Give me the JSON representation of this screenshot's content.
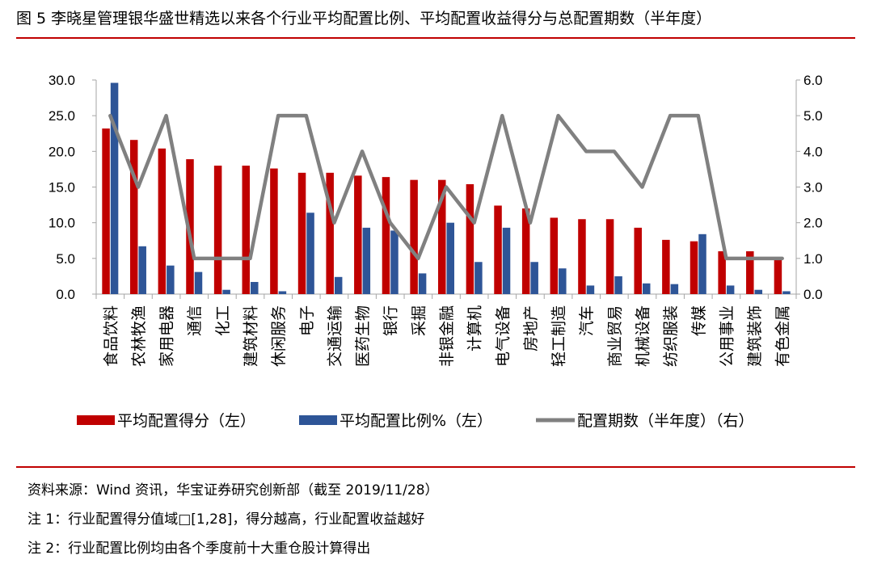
{
  "title": "图 5   李晓星管理银华盛世精选以来各个行业平均配置比例、平均配置收益得分与总配置期数（半年度）",
  "notes": {
    "source": "资料来源：Wind 资讯，华宝证券研究创新部（截至 2019/11/28）",
    "note1": "注 1：行业配置得分值域□[1,28]，得分越高，行业配置收益越好",
    "note2": "注 2：行业配置比例均由各个季度前十大重仓股计算得出"
  },
  "colors": {
    "score": "#c00000",
    "ratio": "#2e5597",
    "periods": "#808080",
    "rule": "#c00000",
    "axis": "#a6a6a6"
  },
  "chart_data": {
    "type": "bar",
    "categories": [
      "食品饮料",
      "农林牧渔",
      "家用电器",
      "通信",
      "化工",
      "建筑材料",
      "休闲服务",
      "电子",
      "交通运输",
      "医药生物",
      "银行",
      "采掘",
      "非银金融",
      "计算机",
      "电气设备",
      "房地产",
      "轻工制造",
      "汽车",
      "商业贸易",
      "机械设备",
      "纺织服装",
      "传媒",
      "公用事业",
      "建筑装饰",
      "有色金属"
    ],
    "series": [
      {
        "name": "平均配置得分（左）",
        "type": "bar",
        "axis": "left",
        "values": [
          23.2,
          21.6,
          20.4,
          18.9,
          18.0,
          18.0,
          17.6,
          17.0,
          17.0,
          16.6,
          16.4,
          16.0,
          16.0,
          15.4,
          12.4,
          12.0,
          10.7,
          10.5,
          10.5,
          9.3,
          7.6,
          7.4,
          6.0,
          6.0,
          5.0
        ]
      },
      {
        "name": "平均配置比例%（左）",
        "type": "bar",
        "axis": "left",
        "values": [
          29.6,
          6.7,
          4.0,
          3.1,
          0.6,
          1.7,
          0.4,
          11.4,
          2.4,
          9.3,
          8.9,
          2.9,
          10.0,
          4.5,
          9.3,
          4.5,
          3.6,
          1.2,
          2.5,
          1.5,
          1.4,
          8.4,
          1.2,
          0.6,
          0.4
        ]
      },
      {
        "name": "配置期数（半年度）（右）",
        "type": "line",
        "axis": "right",
        "values": [
          5,
          3,
          5,
          1,
          1,
          1,
          5,
          5,
          2,
          4,
          2,
          1,
          3,
          2,
          5,
          2,
          5,
          4,
          4,
          3,
          5,
          5,
          1,
          1,
          1
        ]
      }
    ],
    "y_left": {
      "lim": [
        0,
        30
      ],
      "ticks": [
        "0.0",
        "5.0",
        "10.0",
        "15.0",
        "20.0",
        "25.0",
        "30.0"
      ]
    },
    "y_right": {
      "lim": [
        0,
        6
      ],
      "ticks": [
        "0.0",
        "1.0",
        "2.0",
        "3.0",
        "4.0",
        "5.0",
        "6.0"
      ]
    },
    "grid": false,
    "legend": "bottom"
  }
}
